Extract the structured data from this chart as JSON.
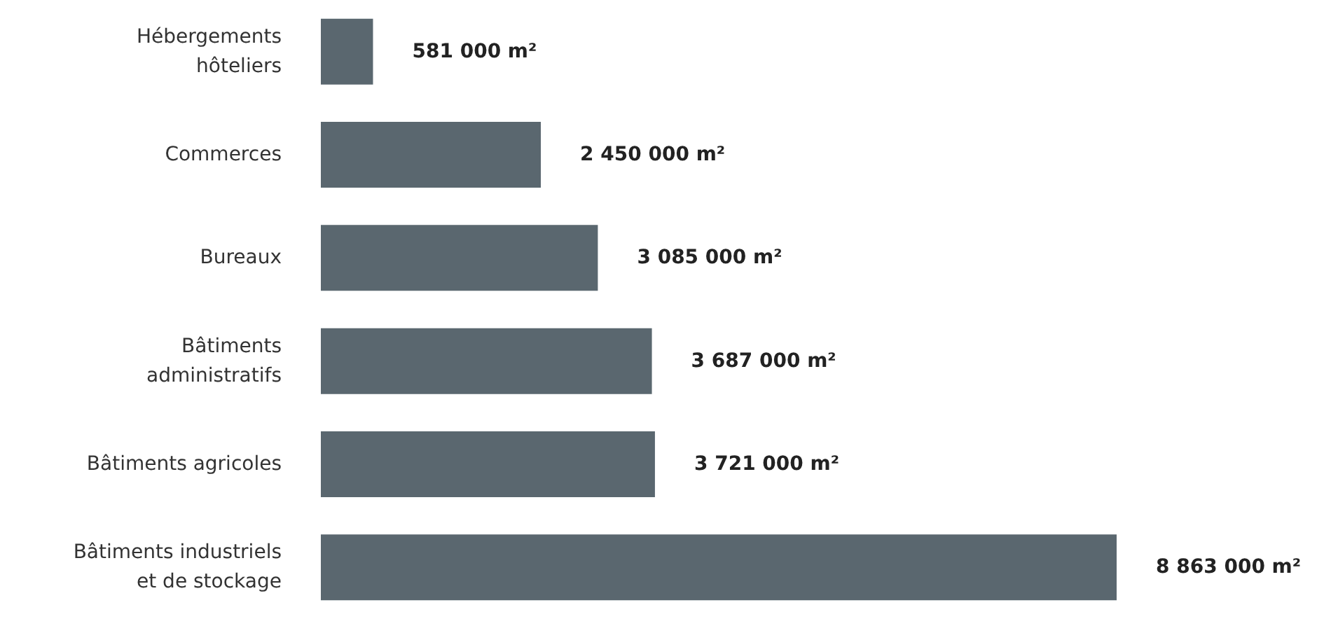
{
  "chart_data": {
    "type": "bar",
    "orientation": "horizontal",
    "categories": [
      "Hébergements\nhôteliers",
      "Commerces",
      "Bureaux",
      "Bâtiments\nadministratifs",
      "Bâtiments agricoles",
      "Bâtiments industriels\net de stockage"
    ],
    "values": [
      581000,
      2450000,
      3085000,
      3687000,
      3721000,
      8863000
    ],
    "value_labels": [
      "581 000 m²",
      "2 450 000 m²",
      "3 085 000 m²",
      "3 687 000 m²",
      "3 721 000 m²",
      "8 863 000 m²"
    ],
    "color": "#5a676f",
    "grid": false
  }
}
